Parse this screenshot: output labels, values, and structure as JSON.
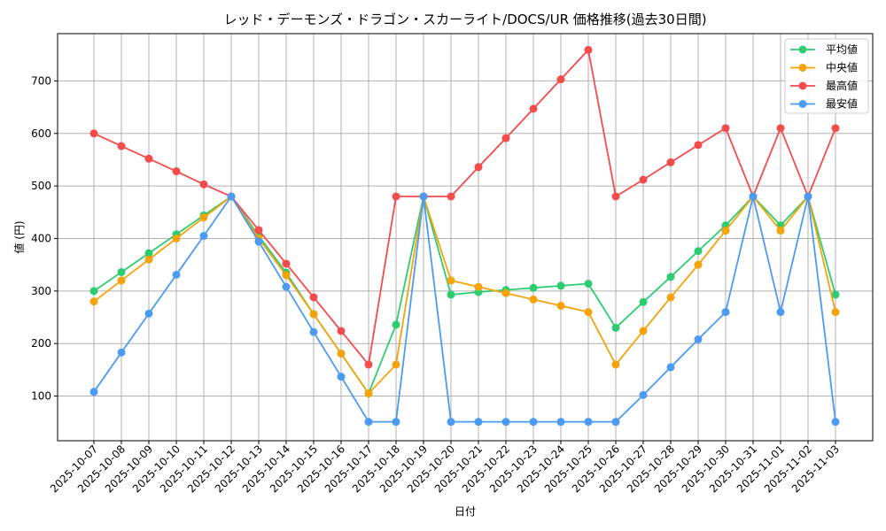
{
  "chart_data": {
    "type": "line",
    "title": "レッド・デーモンズ・ドラゴン・スカーライト/DOCS/UR 価格推移(過去30日間)",
    "xlabel": "日付",
    "ylabel": "値 (円)",
    "ylim": [
      15,
      790
    ],
    "yticks": [
      100,
      200,
      300,
      400,
      500,
      600,
      700
    ],
    "grid": true,
    "legend_position": "upper right",
    "categories": [
      "2025-10-07",
      "2025-10-08",
      "2025-10-09",
      "2025-10-10",
      "2025-10-11",
      "2025-10-12",
      "2025-10-13",
      "2025-10-14",
      "2025-10-15",
      "2025-10-16",
      "2025-10-17",
      "2025-10-18",
      "2025-10-19",
      "2025-10-20",
      "2025-10-21",
      "2025-10-22",
      "2025-10-23",
      "2025-10-24",
      "2025-10-25",
      "2025-10-26",
      "2025-10-27",
      "2025-10-28",
      "2025-10-29",
      "2025-10-30",
      "2025-10-31",
      "2025-11-01",
      "2025-11-02",
      "2025-11-03"
    ],
    "series": [
      {
        "name": "平均値",
        "color": "#2ecc71",
        "values": [
          300,
          336,
          372,
          408,
          444,
          480,
          405,
          335,
          256,
          181,
          105,
          236,
          480,
          293,
          298,
          302,
          306,
          310,
          314,
          230,
          279,
          327,
          376,
          425,
          480,
          425,
          480,
          293
        ]
      },
      {
        "name": "中央値",
        "color": "#f5a30a",
        "values": [
          280,
          320,
          360,
          400,
          440,
          480,
          400,
          330,
          256,
          181,
          105,
          160,
          480,
          320,
          308,
          296,
          284,
          272,
          260,
          160,
          224,
          288,
          350,
          415,
          480,
          415,
          480,
          260
        ]
      },
      {
        "name": "最高値",
        "color": "#f44b4b",
        "values": [
          600,
          576,
          552,
          528,
          503,
          480,
          416,
          352,
          288,
          224,
          160,
          480,
          480,
          480,
          536,
          591,
          647,
          703,
          759,
          480,
          512,
          545,
          578,
          610,
          480,
          610,
          480,
          610
        ]
      },
      {
        "name": "最安値",
        "color": "#4b9bf5",
        "values": [
          108,
          183,
          257,
          331,
          405,
          480,
          394,
          308,
          222,
          137,
          51,
          51,
          480,
          51,
          51,
          51,
          51,
          51,
          51,
          51,
          102,
          155,
          208,
          260,
          480,
          260,
          480,
          51
        ]
      }
    ]
  }
}
